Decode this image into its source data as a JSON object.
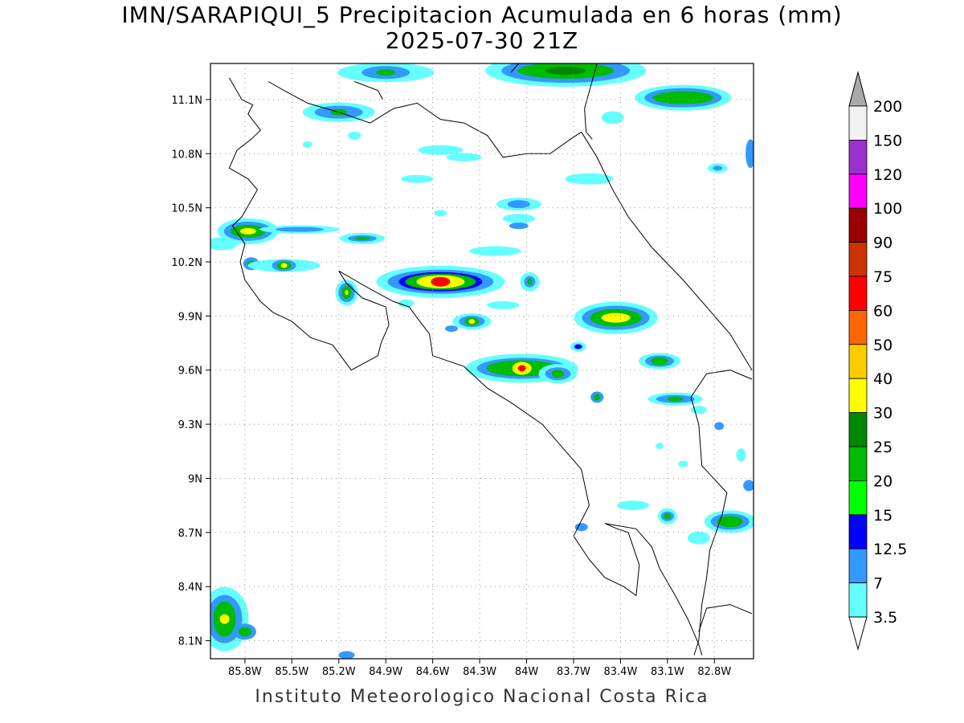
{
  "title_line1": "IMN/SARAPIQUI_5 Precipitacion Acumulada en 6 horas (mm)",
  "title_line2": "2025-07-30 21Z",
  "footer": "Instituto Meteorologico Nacional Costa Rica",
  "map": {
    "lon_range": [
      -86.02,
      -82.55
    ],
    "lat_range": [
      8.0,
      11.3
    ],
    "lat_ticks": [
      "11.1N",
      "10.8N",
      "10.5N",
      "10.2N",
      "9.9N",
      "9.6N",
      "9.3N",
      "9N",
      "8.7N",
      "8.4N",
      "8.1N"
    ],
    "lat_values": [
      11.1,
      10.8,
      10.5,
      10.2,
      9.9,
      9.6,
      9.3,
      9.0,
      8.7,
      8.4,
      8.1
    ],
    "lon_ticks": [
      "85.8W",
      "85.5W",
      "85.2W",
      "84.9W",
      "84.6W",
      "84.3W",
      "84W",
      "83.7W",
      "83.4W",
      "83.1W",
      "82.8W"
    ],
    "lon_values": [
      -85.8,
      -85.5,
      -85.2,
      -84.9,
      -84.6,
      -84.3,
      -84.0,
      -83.7,
      -83.4,
      -83.1,
      -82.8
    ]
  },
  "colorbar": {
    "labels": [
      "200",
      "150",
      "120",
      "100",
      "90",
      "75",
      "60",
      "50",
      "40",
      "30",
      "25",
      "20",
      "15",
      "12.5",
      "7",
      "3.5"
    ],
    "colors": [
      "#f2f2f2",
      "#9932cc",
      "#ff00ff",
      "#990000",
      "#cc3300",
      "#ff0000",
      "#ff6600",
      "#ffcc00",
      "#ffff00",
      "#008800",
      "#00bb00",
      "#00ff00",
      "#0000ff",
      "#3399ff",
      "#66ffff"
    ],
    "top_arrow_color": "#aaaaaa",
    "bottom_arrow_color": "#ffffff"
  },
  "cells": [
    {
      "lon": -85.78,
      "lat": 10.37,
      "levels": [
        {
          "rx": 38,
          "ry": 16,
          "c": "#66ffff"
        },
        {
          "rx": 30,
          "ry": 12,
          "c": "#3399ff"
        },
        {
          "rx": 22,
          "ry": 8,
          "c": "#00bb00"
        },
        {
          "rx": 10,
          "ry": 4,
          "c": "#ffff00"
        }
      ]
    },
    {
      "lon": -85.45,
      "lat": 10.38,
      "levels": [
        {
          "rx": 50,
          "ry": 5,
          "c": "#66ffff"
        },
        {
          "rx": 30,
          "ry": 3,
          "c": "#3399ff"
        }
      ]
    },
    {
      "lon": -85.05,
      "lat": 10.33,
      "levels": [
        {
          "rx": 28,
          "ry": 7,
          "c": "#66ffff"
        },
        {
          "rx": 18,
          "ry": 4,
          "c": "#3399ff"
        },
        {
          "rx": 10,
          "ry": 2,
          "c": "#00bb00"
        }
      ]
    },
    {
      "lon": -85.76,
      "lat": 10.19,
      "levels": [
        {
          "rx": 10,
          "ry": 8,
          "c": "#3399ff"
        },
        {
          "rx": 5,
          "ry": 4,
          "c": "#00bb00"
        }
      ]
    },
    {
      "lon": -85.55,
      "lat": 10.18,
      "levels": [
        {
          "rx": 45,
          "ry": 8,
          "c": "#66ffff"
        },
        {
          "rx": 15,
          "ry": 7,
          "c": "#3399ff"
        },
        {
          "rx": 9,
          "ry": 5,
          "c": "#00bb00"
        },
        {
          "rx": 4,
          "ry": 3,
          "c": "#ffff00"
        }
      ]
    },
    {
      "lon": -85.15,
      "lat": 10.03,
      "levels": [
        {
          "rx": 14,
          "ry": 16,
          "c": "#66ffff"
        },
        {
          "rx": 10,
          "ry": 12,
          "c": "#3399ff"
        },
        {
          "rx": 6,
          "ry": 8,
          "c": "#00bb00"
        },
        {
          "rx": 2,
          "ry": 3,
          "c": "#ffff00"
        }
      ]
    },
    {
      "lon": -84.55,
      "lat": 10.09,
      "levels": [
        {
          "rx": 80,
          "ry": 20,
          "c": "#66ffff"
        },
        {
          "rx": 66,
          "ry": 15,
          "c": "#3399ff"
        },
        {
          "rx": 52,
          "ry": 12,
          "c": "#0000ff"
        },
        {
          "rx": 44,
          "ry": 10,
          "c": "#00bb00"
        },
        {
          "rx": 30,
          "ry": 8,
          "c": "#ffff00"
        },
        {
          "rx": 12,
          "ry": 6,
          "c": "#ff0000"
        }
      ]
    },
    {
      "lon": -84.35,
      "lat": 9.87,
      "levels": [
        {
          "rx": 24,
          "ry": 10,
          "c": "#66ffff"
        },
        {
          "rx": 16,
          "ry": 7,
          "c": "#3399ff"
        },
        {
          "rx": 9,
          "ry": 5,
          "c": "#00bb00"
        },
        {
          "rx": 4,
          "ry": 3,
          "c": "#ffff00"
        }
      ]
    },
    {
      "lon": -84.03,
      "lat": 9.61,
      "levels": [
        {
          "rx": 70,
          "ry": 18,
          "c": "#66ffff"
        },
        {
          "rx": 56,
          "ry": 13,
          "c": "#3399ff"
        },
        {
          "rx": 44,
          "ry": 10,
          "c": "#00bb00"
        },
        {
          "rx": 12,
          "ry": 8,
          "c": "#ffff00"
        },
        {
          "rx": 5,
          "ry": 4,
          "c": "#ff0000"
        }
      ]
    },
    {
      "lon": -83.8,
      "lat": 9.58,
      "levels": [
        {
          "rx": 24,
          "ry": 12,
          "c": "#66ffff"
        },
        {
          "rx": 16,
          "ry": 8,
          "c": "#3399ff"
        },
        {
          "rx": 8,
          "ry": 5,
          "c": "#00bb00"
        }
      ]
    },
    {
      "lon": -83.43,
      "lat": 9.89,
      "levels": [
        {
          "rx": 52,
          "ry": 20,
          "c": "#66ffff"
        },
        {
          "rx": 42,
          "ry": 15,
          "c": "#3399ff"
        },
        {
          "rx": 32,
          "ry": 11,
          "c": "#00bb00"
        },
        {
          "rx": 18,
          "ry": 6,
          "c": "#ffff00"
        }
      ]
    },
    {
      "lon": -83.15,
      "lat": 9.65,
      "levels": [
        {
          "rx": 26,
          "ry": 10,
          "c": "#66ffff"
        },
        {
          "rx": 18,
          "ry": 7,
          "c": "#3399ff"
        },
        {
          "rx": 11,
          "ry": 5,
          "c": "#00bb00"
        }
      ]
    },
    {
      "lon": -83.05,
      "lat": 9.44,
      "levels": [
        {
          "rx": 34,
          "ry": 8,
          "c": "#66ffff"
        },
        {
          "rx": 24,
          "ry": 5,
          "c": "#3399ff"
        },
        {
          "rx": 10,
          "ry": 3,
          "c": "#00bb00"
        }
      ]
    },
    {
      "lon": -83.55,
      "lat": 9.45,
      "levels": [
        {
          "rx": 8,
          "ry": 7,
          "c": "#3399ff"
        },
        {
          "rx": 4,
          "ry": 4,
          "c": "#00bb00"
        }
      ]
    },
    {
      "lon": -83.75,
      "lat": 11.26,
      "levels": [
        {
          "rx": 100,
          "ry": 20,
          "c": "#66ffff"
        },
        {
          "rx": 80,
          "ry": 15,
          "c": "#3399ff"
        },
        {
          "rx": 60,
          "ry": 10,
          "c": "#00bb00"
        },
        {
          "rx": 25,
          "ry": 5,
          "c": "#008800"
        }
      ]
    },
    {
      "lon": -83.0,
      "lat": 11.11,
      "levels": [
        {
          "rx": 60,
          "ry": 16,
          "c": "#66ffff"
        },
        {
          "rx": 48,
          "ry": 12,
          "c": "#3399ff"
        },
        {
          "rx": 38,
          "ry": 8,
          "c": "#00bb00"
        }
      ]
    },
    {
      "lon": -84.9,
      "lat": 11.25,
      "levels": [
        {
          "rx": 60,
          "ry": 12,
          "c": "#66ffff"
        },
        {
          "rx": 30,
          "ry": 8,
          "c": "#3399ff"
        },
        {
          "rx": 12,
          "ry": 4,
          "c": "#00bb00"
        }
      ]
    },
    {
      "lon": -85.2,
      "lat": 11.03,
      "levels": [
        {
          "rx": 45,
          "ry": 12,
          "c": "#66ffff"
        },
        {
          "rx": 30,
          "ry": 8,
          "c": "#3399ff"
        },
        {
          "rx": 10,
          "ry": 4,
          "c": "#00bb00"
        }
      ]
    },
    {
      "lon": -83.1,
      "lat": 8.79,
      "levels": [
        {
          "rx": 12,
          "ry": 10,
          "c": "#66ffff"
        },
        {
          "rx": 8,
          "ry": 6,
          "c": "#3399ff"
        },
        {
          "rx": 4,
          "ry": 4,
          "c": "#00bb00"
        }
      ]
    },
    {
      "lon": -82.7,
      "lat": 8.76,
      "levels": [
        {
          "rx": 32,
          "ry": 14,
          "c": "#66ffff"
        },
        {
          "rx": 24,
          "ry": 10,
          "c": "#3399ff"
        },
        {
          "rx": 16,
          "ry": 7,
          "c": "#00bb00"
        }
      ]
    },
    {
      "lon": -85.93,
      "lat": 8.22,
      "levels": [
        {
          "rx": 30,
          "ry": 40,
          "c": "#66ffff"
        },
        {
          "rx": 22,
          "ry": 30,
          "c": "#3399ff"
        },
        {
          "rx": 14,
          "ry": 22,
          "c": "#00bb00"
        },
        {
          "rx": 6,
          "ry": 6,
          "c": "#ffff00"
        }
      ]
    },
    {
      "lon": -85.8,
      "lat": 8.15,
      "levels": [
        {
          "rx": 14,
          "ry": 10,
          "c": "#3399ff"
        },
        {
          "rx": 8,
          "ry": 6,
          "c": "#00bb00"
        }
      ]
    },
    {
      "lon": -84.05,
      "lat": 10.52,
      "levels": [
        {
          "rx": 28,
          "ry": 8,
          "c": "#66ffff"
        },
        {
          "rx": 14,
          "ry": 5,
          "c": "#3399ff"
        }
      ]
    },
    {
      "lon": -83.98,
      "lat": 10.09,
      "levels": [
        {
          "rx": 12,
          "ry": 12,
          "c": "#66ffff"
        },
        {
          "rx": 7,
          "ry": 7,
          "c": "#3399ff"
        },
        {
          "rx": 3,
          "ry": 4,
          "c": "#00bb00"
        }
      ]
    },
    {
      "lon": -83.6,
      "lat": 10.66,
      "levels": [
        {
          "rx": 30,
          "ry": 7,
          "c": "#66ffff"
        }
      ]
    },
    {
      "lon": -84.55,
      "lat": 10.82,
      "levels": [
        {
          "rx": 28,
          "ry": 6,
          "c": "#66ffff"
        }
      ]
    },
    {
      "lon": -84.7,
      "lat": 10.66,
      "levels": [
        {
          "rx": 20,
          "ry": 5,
          "c": "#66ffff"
        }
      ]
    },
    {
      "lon": -84.2,
      "lat": 10.26,
      "levels": [
        {
          "rx": 32,
          "ry": 6,
          "c": "#66ffff"
        }
      ]
    },
    {
      "lon": -84.4,
      "lat": 10.78,
      "levels": [
        {
          "rx": 22,
          "ry": 5,
          "c": "#66ffff"
        }
      ]
    },
    {
      "lon": -83.45,
      "lat": 11.0,
      "levels": [
        {
          "rx": 14,
          "ry": 8,
          "c": "#66ffff"
        }
      ]
    },
    {
      "lon": -82.78,
      "lat": 10.72,
      "levels": [
        {
          "rx": 12,
          "ry": 6,
          "c": "#66ffff"
        },
        {
          "rx": 6,
          "ry": 3,
          "c": "#3399ff"
        }
      ]
    },
    {
      "lon": -83.67,
      "lat": 9.73,
      "levels": [
        {
          "rx": 10,
          "ry": 6,
          "c": "#66ffff"
        },
        {
          "rx": 5,
          "ry": 3,
          "c": "#0000ff"
        }
      ]
    },
    {
      "lon": -84.48,
      "lat": 9.83,
      "levels": [
        {
          "rx": 8,
          "ry": 4,
          "c": "#3399ff"
        }
      ]
    },
    {
      "lon": -82.77,
      "lat": 9.29,
      "levels": [
        {
          "rx": 6,
          "ry": 5,
          "c": "#3399ff"
        }
      ]
    },
    {
      "lon": -82.63,
      "lat": 9.13,
      "levels": [
        {
          "rx": 6,
          "ry": 8,
          "c": "#66ffff"
        }
      ]
    },
    {
      "lon": -82.58,
      "lat": 8.96,
      "levels": [
        {
          "rx": 7,
          "ry": 7,
          "c": "#3399ff"
        }
      ]
    },
    {
      "lon": -82.9,
      "lat": 8.67,
      "levels": [
        {
          "rx": 14,
          "ry": 8,
          "c": "#66ffff"
        }
      ]
    },
    {
      "lon": -82.57,
      "lat": 10.8,
      "levels": [
        {
          "rx": 6,
          "ry": 18,
          "c": "#3399ff"
        }
      ]
    },
    {
      "lon": -83.32,
      "lat": 8.85,
      "levels": [
        {
          "rx": 20,
          "ry": 6,
          "c": "#66ffff"
        }
      ]
    },
    {
      "lon": -83.65,
      "lat": 8.73,
      "levels": [
        {
          "rx": 8,
          "ry": 5,
          "c": "#3399ff"
        }
      ]
    },
    {
      "lon": -82.9,
      "lat": 9.38,
      "levels": [
        {
          "rx": 10,
          "ry": 5,
          "c": "#66ffff"
        }
      ]
    },
    {
      "lon": -83.15,
      "lat": 9.18,
      "levels": [
        {
          "rx": 5,
          "ry": 4,
          "c": "#66ffff"
        }
      ]
    },
    {
      "lon": -83.0,
      "lat": 9.08,
      "levels": [
        {
          "rx": 6,
          "ry": 4,
          "c": "#66ffff"
        }
      ]
    },
    {
      "lon": -85.95,
      "lat": 10.3,
      "levels": [
        {
          "rx": 20,
          "ry": 8,
          "c": "#66ffff"
        }
      ]
    },
    {
      "lon": -85.1,
      "lat": 10.9,
      "levels": [
        {
          "rx": 8,
          "ry": 5,
          "c": "#66ffff"
        }
      ]
    },
    {
      "lon": -85.4,
      "lat": 10.85,
      "levels": [
        {
          "rx": 6,
          "ry": 4,
          "c": "#66ffff"
        }
      ]
    },
    {
      "lon": -84.77,
      "lat": 9.97,
      "levels": [
        {
          "rx": 10,
          "ry": 5,
          "c": "#66ffff"
        }
      ]
    },
    {
      "lon": -84.15,
      "lat": 9.96,
      "levels": [
        {
          "rx": 20,
          "ry": 5,
          "c": "#66ffff"
        }
      ]
    },
    {
      "lon": -84.55,
      "lat": 10.47,
      "levels": [
        {
          "rx": 8,
          "ry": 4,
          "c": "#66ffff"
        }
      ]
    },
    {
      "lon": -84.05,
      "lat": 10.44,
      "levels": [
        {
          "rx": 20,
          "ry": 6,
          "c": "#66ffff"
        }
      ]
    },
    {
      "lon": -84.05,
      "lat": 10.4,
      "levels": [
        {
          "rx": 12,
          "ry": 4,
          "c": "#3399ff"
        }
      ]
    },
    {
      "lon": -85.15,
      "lat": 8.02,
      "levels": [
        {
          "rx": 10,
          "ry": 5,
          "c": "#3399ff"
        }
      ]
    }
  ],
  "coastline": [
    [
      [
        -85.9,
        11.22
      ],
      [
        -85.82,
        11.1
      ],
      [
        -85.75,
        11.07
      ],
      [
        -85.78,
        11.02
      ],
      [
        -85.7,
        10.93
      ],
      [
        -85.76,
        10.88
      ],
      [
        -85.85,
        10.82
      ],
      [
        -85.9,
        10.72
      ],
      [
        -85.78,
        10.66
      ],
      [
        -85.72,
        10.6
      ],
      [
        -85.82,
        10.45
      ],
      [
        -85.88,
        10.4
      ],
      [
        -85.8,
        10.3
      ],
      [
        -85.83,
        10.2
      ],
      [
        -85.8,
        10.1
      ],
      [
        -85.7,
        9.98
      ],
      [
        -85.62,
        9.92
      ],
      [
        -85.5,
        9.87
      ],
      [
        -85.38,
        9.78
      ],
      [
        -85.24,
        9.74
      ],
      [
        -85.12,
        9.6
      ],
      [
        -84.95,
        9.68
      ],
      [
        -84.93,
        9.75
      ],
      [
        -84.88,
        9.85
      ],
      [
        -84.9,
        9.95
      ],
      [
        -85.05,
        10.0
      ],
      [
        -85.15,
        10.08
      ],
      [
        -85.2,
        10.15
      ],
      [
        -85.1,
        10.1
      ],
      [
        -85.0,
        10.05
      ],
      [
        -84.85,
        9.98
      ],
      [
        -84.75,
        9.95
      ],
      [
        -84.7,
        9.89
      ],
      [
        -84.62,
        9.8
      ],
      [
        -84.6,
        9.68
      ],
      [
        -84.4,
        9.62
      ],
      [
        -84.25,
        9.5
      ],
      [
        -84.1,
        9.42
      ],
      [
        -83.9,
        9.3
      ],
      [
        -83.75,
        9.15
      ],
      [
        -83.65,
        9.05
      ],
      [
        -83.6,
        8.85
      ],
      [
        -83.7,
        8.68
      ],
      [
        -83.6,
        8.55
      ],
      [
        -83.5,
        8.45
      ],
      [
        -83.38,
        8.4
      ],
      [
        -83.3,
        8.35
      ],
      [
        -83.28,
        8.52
      ],
      [
        -83.35,
        8.7
      ],
      [
        -83.42,
        8.72
      ],
      [
        -83.5,
        8.75
      ],
      [
        -83.3,
        8.72
      ],
      [
        -83.2,
        8.62
      ],
      [
        -83.15,
        8.5
      ],
      [
        -83.05,
        8.35
      ],
      [
        -82.97,
        8.22
      ],
      [
        -82.9,
        8.08
      ],
      [
        -82.88,
        8.02
      ]
    ],
    [
      [
        -85.65,
        11.2
      ],
      [
        -85.55,
        11.15
      ],
      [
        -85.4,
        11.08
      ],
      [
        -85.2,
        11.03
      ],
      [
        -85.0,
        10.97
      ],
      [
        -84.85,
        11.05
      ],
      [
        -84.7,
        11.08
      ],
      [
        -84.55,
        10.99
      ],
      [
        -84.4,
        10.97
      ],
      [
        -84.25,
        10.9
      ],
      [
        -84.15,
        10.78
      ],
      [
        -84.0,
        10.8
      ],
      [
        -83.85,
        10.8
      ],
      [
        -83.72,
        10.88
      ],
      [
        -83.65,
        10.92
      ]
    ],
    [
      [
        -83.65,
        10.92
      ],
      [
        -83.55,
        10.78
      ],
      [
        -83.45,
        10.6
      ],
      [
        -83.35,
        10.45
      ],
      [
        -83.2,
        10.28
      ],
      [
        -83.0,
        10.1
      ],
      [
        -82.85,
        9.95
      ],
      [
        -82.7,
        9.8
      ],
      [
        -82.56,
        9.6
      ]
    ],
    [
      [
        -82.93,
        8.02
      ],
      [
        -82.9,
        8.1
      ],
      [
        -82.88,
        8.3
      ],
      [
        -82.85,
        8.45
      ],
      [
        -82.83,
        8.6
      ],
      [
        -82.75,
        8.8
      ],
      [
        -82.72,
        8.92
      ],
      [
        -82.88,
        9.07
      ],
      [
        -82.9,
        9.3
      ],
      [
        -82.95,
        9.45
      ],
      [
        -82.85,
        9.58
      ],
      [
        -82.7,
        9.6
      ],
      [
        -82.56,
        9.55
      ]
    ],
    [
      [
        -83.55,
        11.3
      ],
      [
        -83.63,
        11.05
      ],
      [
        -83.62,
        10.92
      ],
      [
        -83.58,
        10.88
      ]
    ],
    [
      [
        -84.05,
        11.3
      ],
      [
        -84.1,
        11.25
      ]
    ],
    [
      [
        -85.1,
        11.2
      ],
      [
        -84.95,
        11.15
      ],
      [
        -84.92,
        11.1
      ]
    ],
    [
      [
        -82.56,
        8.25
      ],
      [
        -82.7,
        8.3
      ],
      [
        -82.85,
        8.28
      ],
      [
        -82.9,
        8.15
      ]
    ]
  ]
}
